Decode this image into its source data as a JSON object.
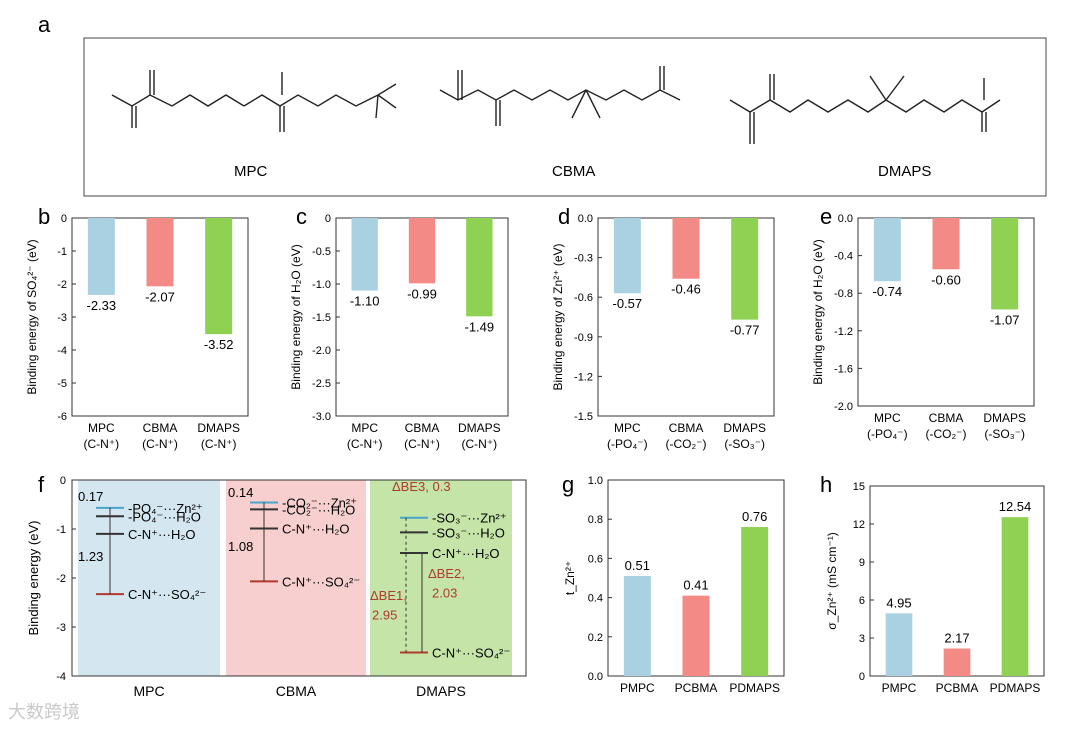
{
  "panel_letters": {
    "a": "a",
    "b": "b",
    "c": "c",
    "d": "d",
    "e": "e",
    "f": "f",
    "g": "g",
    "h": "h"
  },
  "molecules": {
    "mpc": "MPC",
    "cbma": "CBMA",
    "dmaps": "DMAPS"
  },
  "chart_data": [
    {
      "id": "b",
      "type": "bar",
      "ylabel": "Binding energy of SO₄²⁻ (eV)",
      "categories": [
        [
          "MPC",
          "(C-N⁺)"
        ],
        [
          "CBMA",
          "(C-N⁺)"
        ],
        [
          "DMAPS",
          "(C-N⁺)"
        ]
      ],
      "values": [
        -2.33,
        -2.07,
        -3.52
      ],
      "value_labels": [
        "-2.33",
        "-2.07",
        "-3.52"
      ],
      "ylim": [
        -6,
        0
      ],
      "ticks": [
        "0",
        "-1",
        "-2",
        "-3",
        "-4",
        "-5",
        "-6"
      ]
    },
    {
      "id": "c",
      "type": "bar",
      "ylabel": "Binding energy of H₂O (eV)",
      "categories": [
        [
          "MPC",
          "(C-N⁺)"
        ],
        [
          "CBMA",
          "(C-N⁺)"
        ],
        [
          "DMAPS",
          "(C-N⁺)"
        ]
      ],
      "values": [
        -1.1,
        -0.99,
        -1.49
      ],
      "value_labels": [
        "-1.10",
        "-0.99",
        "-1.49"
      ],
      "ylim": [
        -3,
        0
      ],
      "ticks": [
        "0",
        "-0.5",
        "-1.0",
        "-1.5",
        "-2.0",
        "-2.5",
        "-3.0"
      ]
    },
    {
      "id": "d",
      "type": "bar",
      "ylabel": "Binding energy of Zn²⁺ (eV)",
      "categories": [
        [
          "MPC",
          "(-PO₄⁻)"
        ],
        [
          "CBMA",
          "(-CO₂⁻)"
        ],
        [
          "DMAPS",
          "(-SO₃⁻)"
        ]
      ],
      "values": [
        -0.57,
        -0.46,
        -0.77
      ],
      "value_labels": [
        "-0.57",
        "-0.46",
        "-0.77"
      ],
      "ylim": [
        -1.5,
        0
      ],
      "ticks": [
        "0.0",
        "-0.3",
        "-0.6",
        "-0.9",
        "-1.2",
        "-1.5"
      ]
    },
    {
      "id": "e",
      "type": "bar",
      "ylabel": "Binding energy of H₂O (eV)",
      "categories": [
        [
          "MPC",
          "(-PO₄⁻)"
        ],
        [
          "CBMA",
          "(-CO₂⁻)"
        ],
        [
          "DMAPS",
          "(-SO₃⁻)"
        ]
      ],
      "values": [
        -0.74,
        -0.6,
        -1.07
      ],
      "value_labels": [
        "-0.74",
        "-0.60",
        "-1.07"
      ],
      "ylim": [
        -2.2,
        0
      ],
      "ticks": [
        "0.0",
        "-0.4",
        "-0.8",
        "-1.2",
        "-1.6",
        "-2.0"
      ]
    },
    {
      "id": "f",
      "type": "energy-diagram",
      "ylabel": "Binding energy (eV)",
      "ylim": [
        -4,
        0
      ],
      "ticks": [
        "0",
        "-1",
        "-2",
        "-3",
        "-4"
      ],
      "categories": [
        "MPC",
        "CBMA",
        "DMAPS"
      ],
      "levels": {
        "MPC": [
          {
            "label": "-PO₄⁻···Zn²⁺",
            "value": -0.57
          },
          {
            "label": "-PO₄⁻···H₂O",
            "value": -0.74
          },
          {
            "label": "C-N⁺···H₂O",
            "value": -1.1
          },
          {
            "label": "C-N⁺···SO₄²⁻",
            "value": -2.33
          }
        ],
        "CBMA": [
          {
            "label": "-CO₂⁻···Zn²⁺",
            "value": -0.46
          },
          {
            "label": "-CO₂⁻···H₂O",
            "value": -0.6
          },
          {
            "label": "C-N⁺···H₂O",
            "value": -0.99
          },
          {
            "label": "C-N⁺···SO₄²⁻",
            "value": -2.07
          }
        ],
        "DMAPS": [
          {
            "label": "-SO₃⁻···Zn²⁺",
            "value": -0.77
          },
          {
            "label": "-SO₃⁻···H₂O",
            "value": -1.07
          },
          {
            "label": "C-N⁺···H₂O",
            "value": -1.49
          },
          {
            "label": "C-N⁺···SO₄²⁻",
            "value": -3.52
          }
        ]
      },
      "annotations": {
        "mpc_top": "0.17",
        "mpc_gap": "1.23",
        "cbma_top": "0.14",
        "cbma_gap": "1.08",
        "be3": "ΔBE3, 0.3",
        "be1a": "ΔBE1,",
        "be1b": "2.95",
        "be2a": "ΔBE2,",
        "be2b": "2.03"
      }
    },
    {
      "id": "g",
      "type": "bar",
      "ylabel": "t_Zn²⁺",
      "categories": [
        "PMPC",
        "PCBMA",
        "PDMAPS"
      ],
      "values": [
        0.51,
        0.41,
        0.76
      ],
      "value_labels": [
        "0.51",
        "0.41",
        "0.76"
      ],
      "ylim": [
        0,
        1.0
      ],
      "ticks": [
        "0.0",
        "0.2",
        "0.4",
        "0.6",
        "0.8",
        "1.0"
      ]
    },
    {
      "id": "h",
      "type": "bar",
      "ylabel": "σ_Zn²⁺ (mS cm⁻¹)",
      "categories": [
        "PMPC",
        "PCBMA",
        "PDMAPS"
      ],
      "values": [
        4.95,
        2.17,
        12.54
      ],
      "value_labels": [
        "4.95",
        "2.17",
        "12.54"
      ],
      "ylim": [
        0,
        15
      ],
      "ticks": [
        "0",
        "3",
        "6",
        "9",
        "12",
        "15"
      ]
    }
  ],
  "colors": {
    "blue": "#a9d1e1",
    "red": "#f48a86",
    "green": "#8fd152",
    "bgblue": "#d4e7f0",
    "bgred": "#f8cfcf",
    "bggreen": "#c5e4a8",
    "accent": "#b03a2e"
  },
  "watermark": "大数跨境"
}
